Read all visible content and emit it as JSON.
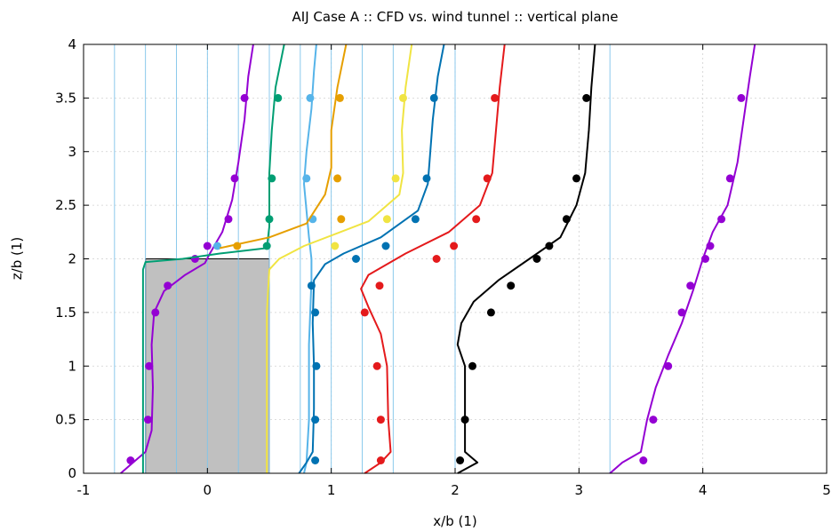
{
  "chart_data": {
    "type": "line",
    "title": "AIJ Case A :: CFD vs. wind tunnel :: vertical plane",
    "xlabel": "x/b (1)",
    "ylabel": "z/b (1)",
    "xlim": [
      -1,
      5
    ],
    "ylim": [
      0,
      4
    ],
    "x_ticks": [
      "-1",
      "0",
      "1",
      "2",
      "3",
      "4",
      "5"
    ],
    "y_ticks": [
      "0",
      "0.5",
      "1",
      "1.5",
      "2",
      "2.5",
      "3",
      "3.5",
      "4"
    ],
    "grid": true,
    "building": {
      "x": [
        -0.5,
        0.5
      ],
      "z": [
        0,
        2
      ],
      "fill": "#c0c0c0"
    },
    "reference_lines_x": [
      -0.75,
      -0.5,
      -0.25,
      0,
      0.25,
      0.5,
      0.75,
      1.0,
      1.25,
      1.5,
      2.0,
      3.25
    ],
    "series": [
      {
        "color": "#9400d3",
        "line": [
          [
            -0.7,
            0
          ],
          [
            -0.6,
            0.1
          ],
          [
            -0.5,
            0.2
          ],
          [
            -0.45,
            0.4
          ],
          [
            -0.44,
            0.8
          ],
          [
            -0.45,
            1.2
          ],
          [
            -0.43,
            1.5
          ],
          [
            -0.35,
            1.7
          ],
          [
            -0.18,
            1.85
          ],
          [
            -0.02,
            1.96
          ],
          [
            0.02,
            2.05
          ],
          [
            0.12,
            2.25
          ],
          [
            0.2,
            2.55
          ],
          [
            0.25,
            2.9
          ],
          [
            0.3,
            3.3
          ],
          [
            0.33,
            3.7
          ],
          [
            0.37,
            4.0
          ]
        ],
        "points": [
          [
            -0.62,
            0.12
          ],
          [
            -0.48,
            0.5
          ],
          [
            -0.47,
            1.0
          ],
          [
            -0.42,
            1.5
          ],
          [
            -0.32,
            1.75
          ],
          [
            -0.1,
            2.0
          ],
          [
            0.0,
            2.12
          ],
          [
            0.17,
            2.37
          ],
          [
            0.22,
            2.75
          ],
          [
            0.3,
            3.5
          ]
        ]
      },
      {
        "color": "#009e73",
        "line": [
          [
            -0.52,
            0
          ],
          [
            -0.52,
            1.2
          ],
          [
            -0.52,
            1.9
          ],
          [
            -0.5,
            1.97
          ],
          [
            -0.2,
            2.0
          ],
          [
            0.1,
            2.05
          ],
          [
            0.48,
            2.1
          ],
          [
            0.5,
            2.3
          ],
          [
            0.5,
            2.8
          ],
          [
            0.52,
            3.2
          ],
          [
            0.55,
            3.6
          ],
          [
            0.62,
            4.0
          ]
        ],
        "points": [
          [
            0.48,
            2.12
          ],
          [
            0.5,
            2.37
          ],
          [
            0.52,
            2.75
          ],
          [
            0.57,
            3.5
          ]
        ]
      },
      {
        "color": "#56b4e9",
        "line": [
          [
            0.78,
            0
          ],
          [
            0.8,
            0.1
          ],
          [
            0.82,
            0.5
          ],
          [
            0.82,
            1.2
          ],
          [
            0.84,
            1.8
          ],
          [
            0.84,
            2.0
          ],
          [
            0.82,
            2.2
          ],
          [
            0.8,
            2.45
          ],
          [
            0.78,
            2.7
          ],
          [
            0.8,
            3.0
          ],
          [
            0.84,
            3.4
          ],
          [
            0.86,
            3.75
          ],
          [
            0.88,
            4.0
          ]
        ],
        "points": [
          [
            0.08,
            2.12
          ],
          [
            0.85,
            2.37
          ],
          [
            0.8,
            2.75
          ],
          [
            0.83,
            3.5
          ]
        ]
      },
      {
        "color": "#e69f00",
        "line": [
          [
            0.1,
            2.1
          ],
          [
            0.5,
            2.2
          ],
          [
            0.8,
            2.33
          ],
          [
            0.95,
            2.6
          ],
          [
            1.0,
            2.85
          ],
          [
            1.0,
            3.2
          ],
          [
            1.05,
            3.6
          ],
          [
            1.12,
            4.0
          ]
        ],
        "points": [
          [
            0.24,
            2.12
          ],
          [
            1.08,
            2.37
          ],
          [
            1.05,
            2.75
          ],
          [
            1.07,
            3.5
          ]
        ]
      },
      {
        "color": "#f0e442",
        "line": [
          [
            0.48,
            0
          ],
          [
            0.48,
            1.5
          ],
          [
            0.5,
            1.9
          ],
          [
            0.58,
            2.0
          ],
          [
            0.78,
            2.12
          ],
          [
            1.3,
            2.35
          ],
          [
            1.55,
            2.6
          ],
          [
            1.58,
            2.8
          ],
          [
            1.57,
            3.2
          ],
          [
            1.6,
            3.6
          ],
          [
            1.65,
            4.0
          ]
        ],
        "points": [
          [
            1.03,
            2.12
          ],
          [
            1.45,
            2.37
          ],
          [
            1.52,
            2.75
          ],
          [
            1.58,
            3.5
          ]
        ]
      },
      {
        "color": "#0072b2",
        "line": [
          [
            0.74,
            0
          ],
          [
            0.8,
            0.1
          ],
          [
            0.85,
            0.2
          ],
          [
            0.86,
            0.6
          ],
          [
            0.86,
            1.0
          ],
          [
            0.85,
            1.4
          ],
          [
            0.86,
            1.8
          ],
          [
            0.95,
            1.95
          ],
          [
            1.1,
            2.05
          ],
          [
            1.4,
            2.2
          ],
          [
            1.7,
            2.45
          ],
          [
            1.78,
            2.7
          ],
          [
            1.8,
            3.0
          ],
          [
            1.82,
            3.3
          ],
          [
            1.86,
            3.7
          ],
          [
            1.91,
            4.0
          ]
        ],
        "points": [
          [
            0.87,
            0.12
          ],
          [
            0.87,
            0.5
          ],
          [
            0.88,
            1.0
          ],
          [
            0.87,
            1.5
          ],
          [
            0.84,
            1.75
          ],
          [
            1.2,
            2.0
          ],
          [
            1.44,
            2.12
          ],
          [
            1.68,
            2.37
          ],
          [
            1.77,
            2.75
          ],
          [
            1.83,
            3.5
          ]
        ]
      },
      {
        "color": "#e41a1c",
        "line": [
          [
            1.27,
            0
          ],
          [
            1.4,
            0.1
          ],
          [
            1.48,
            0.2
          ],
          [
            1.46,
            0.5
          ],
          [
            1.45,
            1.0
          ],
          [
            1.4,
            1.3
          ],
          [
            1.3,
            1.55
          ],
          [
            1.24,
            1.72
          ],
          [
            1.3,
            1.85
          ],
          [
            1.6,
            2.05
          ],
          [
            1.95,
            2.25
          ],
          [
            2.2,
            2.5
          ],
          [
            2.3,
            2.8
          ],
          [
            2.33,
            3.2
          ],
          [
            2.36,
            3.6
          ],
          [
            2.4,
            4.0
          ]
        ],
        "points": [
          [
            1.4,
            0.12
          ],
          [
            1.4,
            0.5
          ],
          [
            1.37,
            1.0
          ],
          [
            1.27,
            1.5
          ],
          [
            1.39,
            1.75
          ],
          [
            1.85,
            2.0
          ],
          [
            1.99,
            2.12
          ],
          [
            2.17,
            2.37
          ],
          [
            2.26,
            2.75
          ],
          [
            2.32,
            3.5
          ]
        ]
      },
      {
        "color": "#000000",
        "line": [
          [
            2.02,
            0
          ],
          [
            2.18,
            0.1
          ],
          [
            2.08,
            0.2
          ],
          [
            2.08,
            0.6
          ],
          [
            2.08,
            1.0
          ],
          [
            2.02,
            1.2
          ],
          [
            2.05,
            1.4
          ],
          [
            2.15,
            1.6
          ],
          [
            2.35,
            1.8
          ],
          [
            2.6,
            2.0
          ],
          [
            2.85,
            2.2
          ],
          [
            2.98,
            2.5
          ],
          [
            3.05,
            2.8
          ],
          [
            3.08,
            3.2
          ],
          [
            3.1,
            3.6
          ],
          [
            3.13,
            4.0
          ]
        ],
        "points": [
          [
            2.04,
            0.12
          ],
          [
            2.08,
            0.5
          ],
          [
            2.14,
            1.0
          ],
          [
            2.29,
            1.5
          ],
          [
            2.45,
            1.75
          ],
          [
            2.66,
            2.0
          ],
          [
            2.76,
            2.12
          ],
          [
            2.9,
            2.37
          ],
          [
            2.98,
            2.75
          ],
          [
            3.06,
            3.5
          ]
        ]
      },
      {
        "color": "#9400d3",
        "line": [
          [
            3.25,
            0
          ],
          [
            3.35,
            0.1
          ],
          [
            3.5,
            0.2
          ],
          [
            3.55,
            0.5
          ],
          [
            3.62,
            0.8
          ],
          [
            3.72,
            1.1
          ],
          [
            3.83,
            1.4
          ],
          [
            3.92,
            1.7
          ],
          [
            4.0,
            2.0
          ],
          [
            4.08,
            2.25
          ],
          [
            4.2,
            2.5
          ],
          [
            4.28,
            2.9
          ],
          [
            4.33,
            3.3
          ],
          [
            4.38,
            3.7
          ],
          [
            4.42,
            4.0
          ]
        ],
        "points": [
          [
            3.52,
            0.12
          ],
          [
            3.6,
            0.5
          ],
          [
            3.72,
            1.0
          ],
          [
            3.83,
            1.5
          ],
          [
            3.9,
            1.75
          ],
          [
            4.02,
            2.0
          ],
          [
            4.06,
            2.12
          ],
          [
            4.15,
            2.37
          ],
          [
            4.22,
            2.75
          ],
          [
            4.31,
            3.5
          ]
        ]
      }
    ]
  }
}
